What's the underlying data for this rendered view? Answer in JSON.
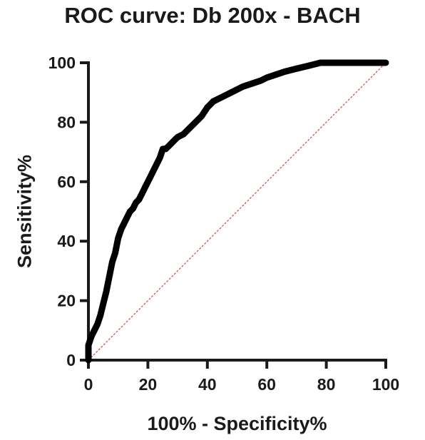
{
  "chart_data": {
    "type": "line",
    "title": "ROC curve: Db 200x - BACH",
    "xlabel": "100% - Specificity%",
    "ylabel": "Sensitivity%",
    "xlim": [
      0,
      100
    ],
    "ylim": [
      0,
      100
    ],
    "x_ticks": [
      0,
      20,
      40,
      60,
      80,
      100
    ],
    "y_ticks": [
      0,
      20,
      40,
      60,
      80,
      100
    ],
    "grid": false,
    "colors": {
      "roc_curve": "#000000",
      "reference_line": "#d04a3a",
      "axis": "#1a1a1a"
    },
    "series": [
      {
        "x": [
          0,
          0,
          1,
          2,
          3,
          4,
          5,
          6,
          7,
          8,
          9,
          10,
          11,
          12,
          13,
          14,
          15,
          16,
          17,
          18,
          19,
          20,
          21,
          22,
          23,
          24,
          25,
          26,
          27,
          28,
          29,
          30,
          32,
          34,
          36,
          38,
          40,
          41,
          42,
          44,
          46,
          48,
          50,
          52,
          55,
          58,
          60,
          63,
          66,
          70,
          74,
          78,
          80,
          85,
          90,
          95,
          100
        ],
        "y": [
          0,
          5,
          8,
          10,
          12,
          15,
          19,
          23,
          28,
          33,
          36,
          41,
          44,
          46,
          48,
          50,
          51,
          53,
          54,
          56,
          58,
          60,
          62,
          64,
          66,
          68,
          71,
          71,
          72,
          73,
          74,
          75,
          76,
          78,
          80,
          82,
          85,
          86,
          87,
          88,
          89,
          90,
          91,
          92,
          93,
          94,
          95,
          96,
          97,
          98,
          99,
          100,
          100,
          100,
          100,
          100,
          100
        ]
      },
      {
        "x": [
          0,
          100
        ],
        "y": [
          0,
          100
        ]
      }
    ]
  }
}
